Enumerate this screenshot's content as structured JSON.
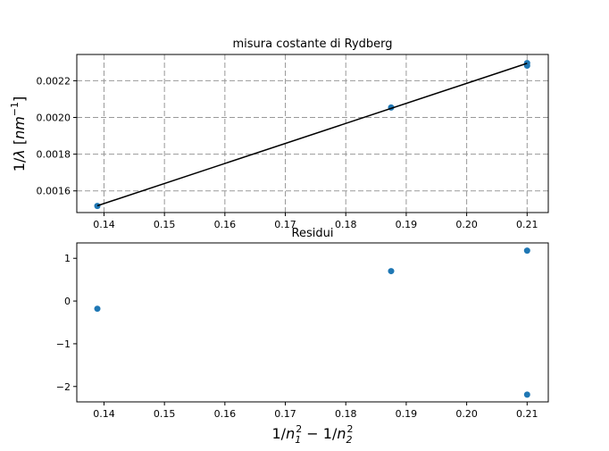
{
  "chart_data": [
    {
      "type": "scatter",
      "title": "misura costante di Rydberg",
      "xlabel": "",
      "ylabel": "1/λ [nm⁻¹]",
      "xlim": [
        0.1355,
        0.2135
      ],
      "ylim": [
        0.001482,
        0.002343
      ],
      "grid": true,
      "xticks": [
        0.14,
        0.15,
        0.16,
        0.17,
        0.18,
        0.19,
        0.2,
        0.21
      ],
      "xtick_labels": [
        "0.14",
        "0.15",
        "0.16",
        "0.17",
        "0.18",
        "0.19",
        "0.20",
        "0.21"
      ],
      "yticks": [
        0.0016,
        0.0018,
        0.002,
        0.0022
      ],
      "ytick_labels": [
        "0.0016",
        "0.0018",
        "0.0020",
        "0.0022"
      ],
      "series": [
        {
          "kind": "scatter",
          "color": "#1f77b4",
          "x": [
            0.1389,
            0.1875,
            0.21,
            0.21
          ],
          "y": [
            0.001518,
            0.002054,
            0.002296,
            0.002282
          ]
        },
        {
          "kind": "line",
          "color": "#000000",
          "x": [
            0.1389,
            0.21
          ],
          "y": [
            0.001519,
            0.002295
          ]
        }
      ]
    },
    {
      "type": "scatter",
      "title": "Residui",
      "xlabel": "1/n₁² − 1/n₂²",
      "ylabel": "",
      "xlim": [
        0.1355,
        0.2135
      ],
      "ylim": [
        -2.36,
        1.36
      ],
      "grid": false,
      "xticks": [
        0.14,
        0.15,
        0.16,
        0.17,
        0.18,
        0.19,
        0.2,
        0.21
      ],
      "xtick_labels": [
        "0.14",
        "0.15",
        "0.16",
        "0.17",
        "0.18",
        "0.19",
        "0.20",
        "0.21"
      ],
      "yticks": [
        -2,
        -1,
        0,
        1
      ],
      "ytick_labels": [
        "−2",
        "−1",
        "0",
        "1"
      ],
      "series": [
        {
          "kind": "scatter",
          "color": "#1f77b4",
          "x": [
            0.1389,
            0.1875,
            0.21,
            0.21
          ],
          "y": [
            -0.18,
            0.7,
            1.18,
            -2.19
          ]
        }
      ]
    }
  ]
}
